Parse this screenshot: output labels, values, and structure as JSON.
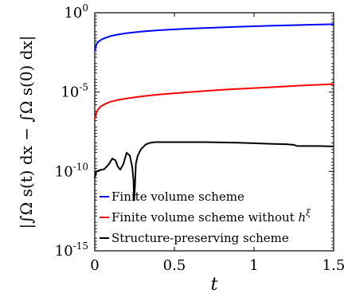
{
  "chart_data": {
    "type": "line",
    "title": "",
    "xlabel": "t",
    "ylabel": "|∫Ω s(t) dx − ∫Ω s(0) dx|",
    "xlim": [
      0,
      1.5
    ],
    "ylim": [
      1e-15,
      1
    ],
    "yscale": "log",
    "grid": false,
    "legend_position": "bottom-left",
    "x_ticks": [
      0,
      0.5,
      1,
      1.5
    ],
    "x_tick_labels": [
      "0",
      "0.5",
      "1",
      "1.5"
    ],
    "y_ticks": [
      1e-15,
      1e-10,
      1e-05,
      1
    ],
    "y_tick_labels": [
      {
        "base": "10",
        "exp": "-15"
      },
      {
        "base": "10",
        "exp": "-10"
      },
      {
        "base": "10",
        "exp": "-5"
      },
      {
        "base": "10",
        "exp": "0"
      }
    ],
    "series": [
      {
        "name": "Finite volume scheme",
        "color": "#0000ff",
        "points": [
          [
            0.0,
            0.004
          ],
          [
            0.01,
            0.01
          ],
          [
            0.02,
            0.014
          ],
          [
            0.04,
            0.02
          ],
          [
            0.07,
            0.027
          ],
          [
            0.1,
            0.034
          ],
          [
            0.15,
            0.043
          ],
          [
            0.2,
            0.052
          ],
          [
            0.3,
            0.066
          ],
          [
            0.4,
            0.079
          ],
          [
            0.5,
            0.09
          ],
          [
            0.6,
            0.1
          ],
          [
            0.7,
            0.11
          ],
          [
            0.8,
            0.12
          ],
          [
            0.9,
            0.13
          ],
          [
            1.0,
            0.14
          ],
          [
            1.1,
            0.15
          ],
          [
            1.2,
            0.16
          ],
          [
            1.3,
            0.17
          ],
          [
            1.4,
            0.18
          ],
          [
            1.5,
            0.19
          ]
        ]
      },
      {
        "name": "Finite volume scheme without h^ξ",
        "color": "#ff0000",
        "points": [
          [
            0.0,
            2e-07
          ],
          [
            0.01,
            5e-07
          ],
          [
            0.02,
            8e-07
          ],
          [
            0.04,
            1.3e-06
          ],
          [
            0.07,
            1.9e-06
          ],
          [
            0.1,
            2.5e-06
          ],
          [
            0.15,
            3.3e-06
          ],
          [
            0.2,
            4e-06
          ],
          [
            0.3,
            5.5e-06
          ],
          [
            0.4,
            7e-06
          ],
          [
            0.5,
            8.5e-06
          ],
          [
            0.6,
            1e-05
          ],
          [
            0.7,
            1.2e-05
          ],
          [
            0.8,
            1.4e-05
          ],
          [
            0.9,
            1.6e-05
          ],
          [
            1.0,
            1.8e-05
          ],
          [
            1.1,
            2e-05
          ],
          [
            1.2,
            2.3e-05
          ],
          [
            1.3,
            2.6e-05
          ],
          [
            1.4,
            2.9e-05
          ],
          [
            1.5,
            3.2e-05
          ]
        ]
      },
      {
        "name": "Structure-preserving scheme",
        "color": "#000000",
        "points": [
          [
            0.0,
            4e-11
          ],
          [
            0.01,
            1e-10
          ],
          [
            0.03,
            1.2e-10
          ],
          [
            0.06,
            1.4e-10
          ],
          [
            0.09,
            3e-10
          ],
          [
            0.11,
            6.5e-10
          ],
          [
            0.13,
            5e-10
          ],
          [
            0.145,
            2e-10
          ],
          [
            0.16,
            1.3e-10
          ],
          [
            0.18,
            3e-10
          ],
          [
            0.2,
            1.5e-09
          ],
          [
            0.22,
            1e-09
          ],
          [
            0.235,
            2e-10
          ],
          [
            0.243,
            3e-11
          ],
          [
            0.247,
            1.5e-12
          ],
          [
            0.252,
            1e-11
          ],
          [
            0.258,
            3e-10
          ],
          [
            0.27,
            1e-09
          ],
          [
            0.29,
            2.5e-09
          ],
          [
            0.32,
            5e-09
          ],
          [
            0.35,
            6.5e-09
          ],
          [
            0.38,
            7e-09
          ],
          [
            0.5,
            7e-09
          ],
          [
            0.7,
            7e-09
          ],
          [
            0.9,
            6.5e-09
          ],
          [
            1.0,
            6e-09
          ],
          [
            1.1,
            5.5e-09
          ],
          [
            1.2,
            5.2e-09
          ],
          [
            1.25,
            4.8e-09
          ],
          [
            1.27,
            4e-09
          ],
          [
            1.3,
            4e-09
          ],
          [
            1.4,
            4e-09
          ],
          [
            1.5,
            3.8e-09
          ]
        ]
      }
    ]
  },
  "legend": {
    "items": [
      {
        "text": "Finite volume scheme",
        "sup": ""
      },
      {
        "text": "Finite volume scheme without ",
        "sup": "ξ",
        "base": "h"
      },
      {
        "text": "Structure-preserving scheme",
        "sup": ""
      }
    ]
  }
}
